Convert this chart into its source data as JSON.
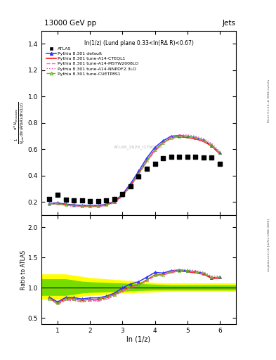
{
  "title_left": "13000 GeV pp",
  "title_right": "Jets",
  "panel_label": "ln(1/z) (Lund plane 0.33<ln(RΔ R)<0.67)",
  "watermark": "ATLAS_2020_I1790256",
  "right_label_top": "Rivet 3.1.10, ≥ 300k events",
  "right_label_bot": "mcplots.cern.ch [arXiv:1306.3436]",
  "ylabel_main": "$\\frac{1}{N_{\\rm jets}}\\frac{d^2 N_{\\rm emissions}}{d\\ln(R/\\Delta R)\\, d\\ln(1/z)}$",
  "ylabel_ratio": "Ratio to ATLAS",
  "xlabel": "ln (1/z)",
  "xlim": [
    0.5,
    6.5
  ],
  "ylim_main": [
    0.1,
    1.5
  ],
  "ylim_ratio": [
    0.4,
    2.2
  ],
  "yticks_main": [
    0.2,
    0.4,
    0.6,
    0.8,
    1.0,
    1.2,
    1.4
  ],
  "yticks_ratio": [
    0.5,
    1.0,
    1.5,
    2.0
  ],
  "xticks": [
    1,
    2,
    3,
    4,
    5,
    6
  ],
  "x_atlas": [
    0.75,
    1.0,
    1.25,
    1.5,
    1.75,
    2.0,
    2.25,
    2.5,
    2.75,
    3.0,
    3.25,
    3.5,
    3.75,
    4.0,
    4.25,
    4.5,
    4.75,
    5.0,
    5.25,
    5.5,
    5.75,
    6.0
  ],
  "y_atlas": [
    0.225,
    0.255,
    0.22,
    0.215,
    0.215,
    0.21,
    0.21,
    0.215,
    0.225,
    0.26,
    0.32,
    0.395,
    0.455,
    0.49,
    0.535,
    0.545,
    0.545,
    0.545,
    0.545,
    0.54,
    0.54,
    0.49
  ],
  "x_lines": [
    0.75,
    1.0,
    1.25,
    1.5,
    1.75,
    2.0,
    2.25,
    2.5,
    2.75,
    3.0,
    3.25,
    3.5,
    3.75,
    4.0,
    4.25,
    4.5,
    4.75,
    5.0,
    5.25,
    5.5,
    5.75,
    6.0
  ],
  "y_default": [
    0.19,
    0.195,
    0.185,
    0.18,
    0.175,
    0.175,
    0.175,
    0.185,
    0.205,
    0.26,
    0.34,
    0.435,
    0.535,
    0.615,
    0.665,
    0.7,
    0.705,
    0.7,
    0.69,
    0.67,
    0.63,
    0.575
  ],
  "y_cteql1": [
    0.185,
    0.19,
    0.18,
    0.175,
    0.17,
    0.17,
    0.17,
    0.18,
    0.2,
    0.25,
    0.325,
    0.415,
    0.515,
    0.595,
    0.65,
    0.685,
    0.695,
    0.69,
    0.68,
    0.66,
    0.625,
    0.565
  ],
  "y_mstw": [
    0.185,
    0.185,
    0.175,
    0.17,
    0.165,
    0.165,
    0.165,
    0.175,
    0.195,
    0.245,
    0.32,
    0.41,
    0.505,
    0.585,
    0.645,
    0.685,
    0.695,
    0.695,
    0.685,
    0.665,
    0.63,
    0.57
  ],
  "y_nnpdf": [
    0.185,
    0.185,
    0.175,
    0.17,
    0.165,
    0.165,
    0.165,
    0.175,
    0.195,
    0.245,
    0.32,
    0.415,
    0.51,
    0.595,
    0.655,
    0.695,
    0.71,
    0.71,
    0.7,
    0.68,
    0.645,
    0.585
  ],
  "y_cuetp": [
    0.185,
    0.19,
    0.18,
    0.175,
    0.17,
    0.17,
    0.17,
    0.18,
    0.2,
    0.25,
    0.325,
    0.415,
    0.515,
    0.595,
    0.65,
    0.69,
    0.7,
    0.7,
    0.69,
    0.67,
    0.635,
    0.575
  ],
  "color_default": "#3333ff",
  "color_cteql1": "#ff0000",
  "color_mstw": "#ff66cc",
  "color_nnpdf": "#ff44aa",
  "color_cuetp": "#66bb22",
  "band_x": [
    0.5,
    0.75,
    1.0,
    1.25,
    1.5,
    1.75,
    2.0,
    2.5,
    3.0,
    3.5,
    4.0,
    4.5,
    5.0,
    5.5,
    6.0,
    6.5
  ],
  "band_yellow_lo": [
    0.82,
    0.82,
    0.82,
    0.82,
    0.85,
    0.87,
    0.88,
    0.9,
    0.92,
    0.93,
    0.94,
    0.95,
    0.95,
    0.95,
    0.95,
    0.95
  ],
  "band_yellow_hi": [
    1.22,
    1.22,
    1.22,
    1.22,
    1.2,
    1.18,
    1.16,
    1.14,
    1.12,
    1.1,
    1.08,
    1.07,
    1.07,
    1.07,
    1.07,
    1.07
  ],
  "band_green_lo": [
    0.88,
    0.88,
    0.88,
    0.88,
    0.9,
    0.92,
    0.93,
    0.94,
    0.95,
    0.96,
    0.97,
    0.97,
    0.97,
    0.97,
    0.97,
    0.97
  ],
  "band_green_hi": [
    1.14,
    1.14,
    1.14,
    1.14,
    1.12,
    1.1,
    1.09,
    1.08,
    1.07,
    1.06,
    1.05,
    1.04,
    1.04,
    1.04,
    1.04,
    1.04
  ]
}
